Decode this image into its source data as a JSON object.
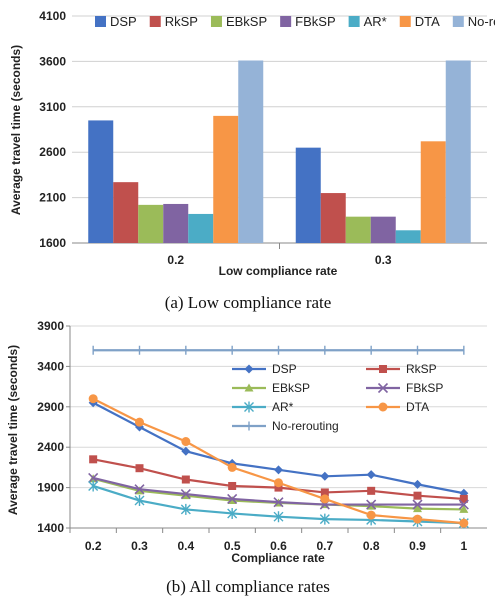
{
  "chart_data": [
    {
      "type": "bar",
      "categories": [
        "0.2",
        "0.3"
      ],
      "ylabel": "Average travel time (seconds)",
      "xlabel": "Low compliance rate",
      "ylim": [
        1600,
        4100
      ],
      "yticks": [
        1600,
        2100,
        2600,
        3100,
        3600,
        4100
      ],
      "legend_position": "top",
      "series": [
        {
          "name": "DSP",
          "color": "#4472C4",
          "values": [
            2950,
            2650
          ]
        },
        {
          "name": "RkSP",
          "color": "#C0504D",
          "values": [
            2270,
            2150
          ]
        },
        {
          "name": "EBkSP",
          "color": "#9BBB59",
          "values": [
            2020,
            1890
          ]
        },
        {
          "name": "FBkSP",
          "color": "#8064A2",
          "values": [
            2030,
            1890
          ]
        },
        {
          "name": "AR*",
          "color": "#4BACC6",
          "values": [
            1920,
            1740
          ]
        },
        {
          "name": "DTA",
          "color": "#F79646",
          "values": [
            3000,
            2720
          ]
        },
        {
          "name": "No-rerouting",
          "color": "#95B3D7",
          "values": [
            3610,
            3610
          ]
        }
      ],
      "caption": "(a) Low compliance rate"
    },
    {
      "type": "line",
      "x": [
        "0.2",
        "0.3",
        "0.4",
        "0.5",
        "0.6",
        "0.7",
        "0.8",
        "0.9",
        "1"
      ],
      "ylabel": "Average travel time (seconds)",
      "xlabel": "Compliance rate",
      "ylim": [
        1400,
        3900
      ],
      "yticks": [
        1400,
        1900,
        2400,
        2900,
        3400,
        3900
      ],
      "legend_position": "top-right",
      "series": [
        {
          "name": "DSP",
          "color": "#4472C4",
          "marker": "diamond",
          "values": [
            2950,
            2650,
            2350,
            2200,
            2120,
            2040,
            2060,
            1940,
            1830
          ]
        },
        {
          "name": "RkSP",
          "color": "#C0504D",
          "marker": "square",
          "values": [
            2250,
            2140,
            2000,
            1920,
            1900,
            1840,
            1860,
            1800,
            1760
          ]
        },
        {
          "name": "EBkSP",
          "color": "#9BBB59",
          "marker": "triangle",
          "values": [
            2010,
            1860,
            1800,
            1740,
            1710,
            1690,
            1670,
            1640,
            1630
          ]
        },
        {
          "name": "FBkSP",
          "color": "#8064A2",
          "marker": "x",
          "values": [
            2020,
            1880,
            1820,
            1760,
            1720,
            1690,
            1690,
            1690,
            1690
          ]
        },
        {
          "name": "AR*",
          "color": "#4BACC6",
          "marker": "star",
          "values": [
            1920,
            1740,
            1630,
            1580,
            1540,
            1510,
            1500,
            1480,
            1460
          ]
        },
        {
          "name": "DTA",
          "color": "#F79646",
          "marker": "circle",
          "values": [
            3000,
            2710,
            2470,
            2150,
            1960,
            1760,
            1560,
            1510,
            1460
          ]
        },
        {
          "name": "No-rerouting",
          "color": "#7FA1C7",
          "marker": "plus",
          "values": [
            3600,
            3600,
            3600,
            3600,
            3600,
            3600,
            3600,
            3600,
            3600
          ]
        }
      ],
      "caption": "(b) All compliance rates"
    }
  ]
}
